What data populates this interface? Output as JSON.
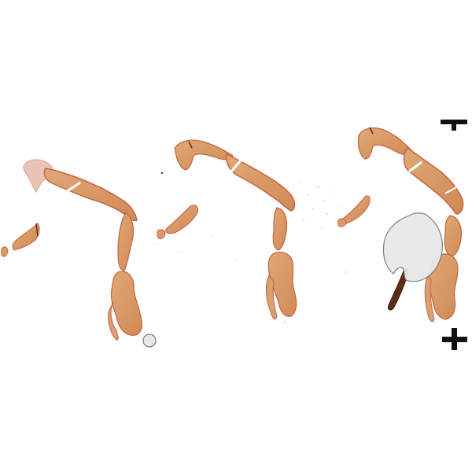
{
  "image": {
    "kind": "histology slide scan",
    "background_color": "#ffffff",
    "tissue_color": "#d99a66",
    "tissue_edge_color": "#c9623f",
    "debris_color": "#5a2e12",
    "marker_color": "#111111",
    "overlay_fill_color": "#e8e8e8",
    "overlay_stroke_color": "#777777",
    "section_count": 3,
    "markers": [
      "top-marker",
      "cross-marker"
    ],
    "overlays": [
      "large-heart-shaped-overlay",
      "small-circle-overlay"
    ]
  }
}
